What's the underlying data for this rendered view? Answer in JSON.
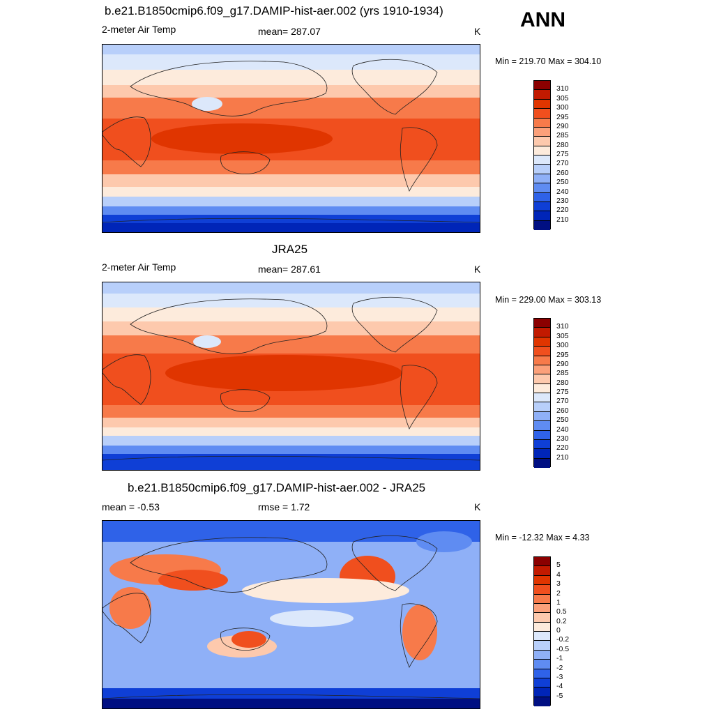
{
  "season": "ANN",
  "panels": [
    {
      "title": "b.e21.B1850cmip6.f09_g17.DAMIP-hist-aer.002 (yrs 1910-1934)",
      "left": "2-meter Air Temp",
      "center": "mean= 287.07",
      "units": "K",
      "minmax": "Min = 219.70 Max = 304.10"
    },
    {
      "title": "JRA25",
      "left": "2-meter Air Temp",
      "center": "mean= 287.61",
      "units": "K",
      "minmax": "Min = 229.00 Max = 303.13"
    },
    {
      "title": "b.e21.B1850cmip6.f09_g17.DAMIP-hist-aer.002 - JRA25",
      "left": "mean =  -0.53",
      "center": "rmse =   1.72",
      "units": "K",
      "minmax": "Min = -12.32 Max =   4.33"
    }
  ],
  "colorbars": {
    "temperature": {
      "labels": [
        "310",
        "305",
        "300",
        "295",
        "290",
        "285",
        "280",
        "275",
        "270",
        "260",
        "250",
        "240",
        "230",
        "220",
        "210"
      ],
      "colors": [
        "#8b0000",
        "#c21a00",
        "#e03500",
        "#f04f1e",
        "#f77a4a",
        "#fba07a",
        "#fdc9ad",
        "#fdebdc",
        "#dce8fb",
        "#b8cffa",
        "#8fb0f7",
        "#5f8cf2",
        "#2f62e8",
        "#0f3fd6",
        "#0025b8",
        "#000f82"
      ]
    },
    "difference": {
      "labels": [
        "5",
        "4",
        "3",
        "2",
        "1",
        "0.5",
        "0.2",
        "0",
        "-0.2",
        "-0.5",
        "-1",
        "-2",
        "-3",
        "-4",
        "-5"
      ],
      "colors": [
        "#8b0000",
        "#c21a00",
        "#e03500",
        "#f04f1e",
        "#f77a4a",
        "#fba07a",
        "#fdc9ad",
        "#fdebdc",
        "#dce8fb",
        "#b8cffa",
        "#8fb0f7",
        "#5f8cf2",
        "#2f62e8",
        "#0f3fd6",
        "#0025b8",
        "#000f82"
      ]
    }
  }
}
